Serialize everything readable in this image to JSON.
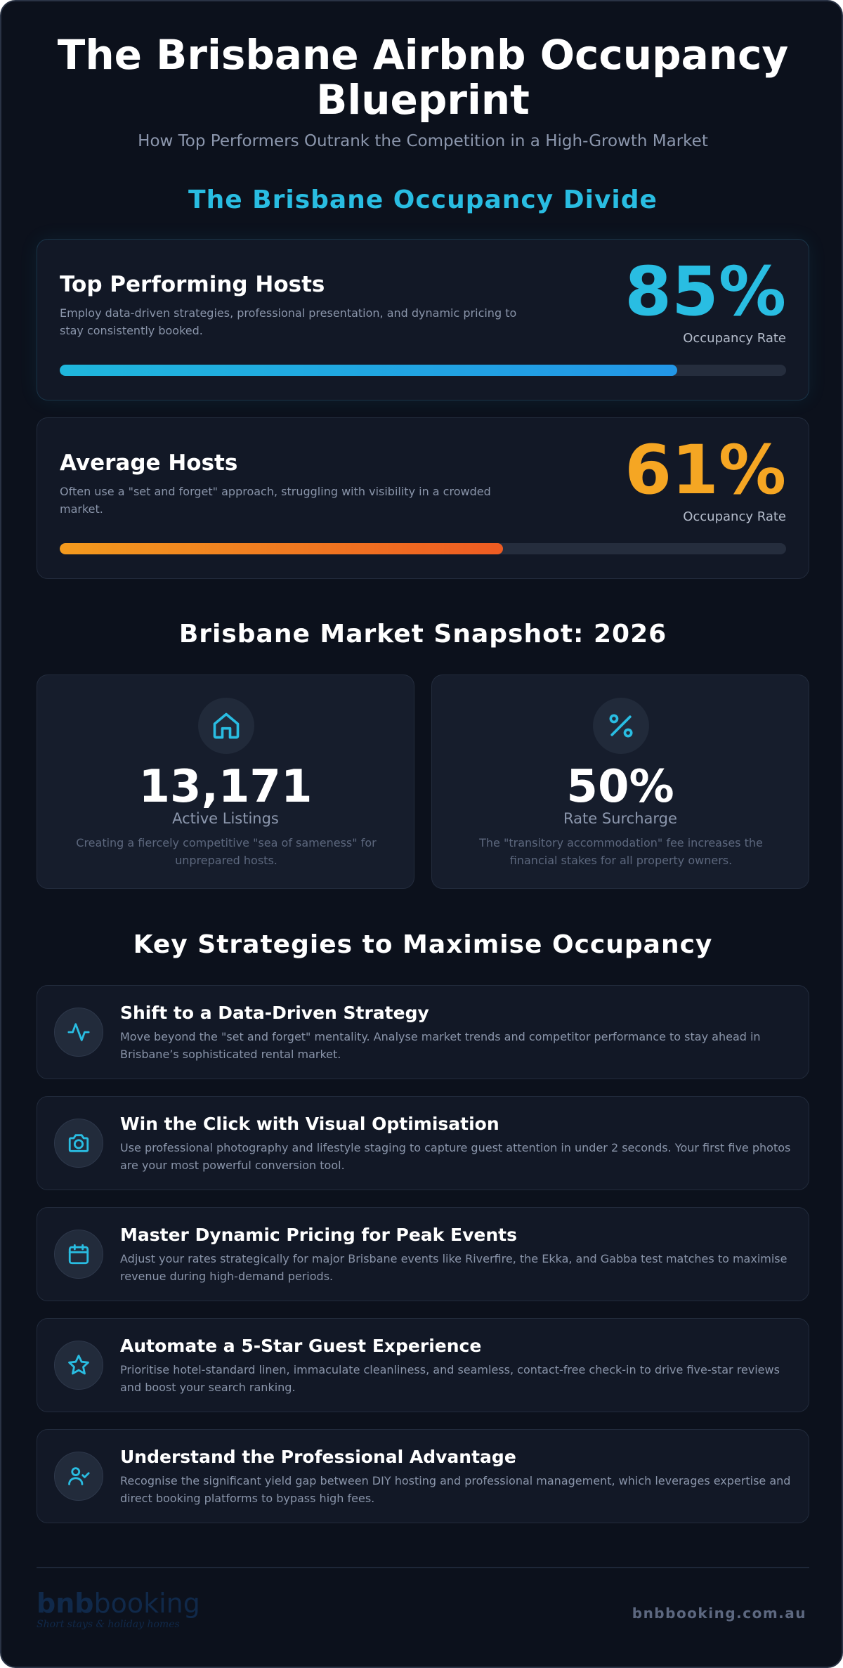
{
  "header": {
    "title_line1": "The Brisbane Airbnb Occupancy",
    "title_line2": "Blueprint",
    "subtitle": "How Top Performers Outrank the Competition in a High-Growth Market"
  },
  "divide": {
    "heading": "The Brisbane Occupancy Divide",
    "cards": [
      {
        "title": "Top Performing Hosts",
        "description": "Employ data-driven strategies, professional presentation, and dynamic pricing to stay consistently booked.",
        "value": "85%",
        "value_label": "Occupancy Rate",
        "progress": 0.85,
        "color": "#29bde2"
      },
      {
        "title": "Average Hosts",
        "description": "Often use a \"set and forget\" approach, struggling with visibility in a crowded market.",
        "value": "61%",
        "value_label": "Occupancy Rate",
        "progress": 0.61,
        "color": "#f5a623"
      }
    ]
  },
  "snapshot": {
    "heading": "Brisbane Market Snapshot: 2026",
    "stats": [
      {
        "icon": "house-icon",
        "value": "13,171",
        "label": "Active Listings",
        "description": "Creating a fiercely competitive \"sea of sameness\" for unprepared hosts."
      },
      {
        "icon": "percent-icon",
        "value": "50%",
        "label": "Rate Surcharge",
        "description": "The \"transitory accommodation\" fee increases the financial stakes for all property owners."
      }
    ]
  },
  "strategies": {
    "heading": "Key Strategies to Maximise Occupancy",
    "items": [
      {
        "icon": "activity-icon",
        "title": "Shift to a Data-Driven Strategy",
        "text": "Move beyond the \"set and forget\" mentality. Analyse market trends and competitor performance to stay ahead in Brisbane’s sophisticated rental market."
      },
      {
        "icon": "camera-icon",
        "title": "Win the Click with Visual Optimisation",
        "text": "Use professional photography and lifestyle staging to capture guest attention in under 2 seconds. Your first five photos are your most powerful conversion tool."
      },
      {
        "icon": "calendar-icon",
        "title": "Master Dynamic Pricing for Peak Events",
        "text": "Adjust your rates strategically for major Brisbane events like Riverfire, the Ekka, and Gabba test matches to maximise revenue during high-demand periods."
      },
      {
        "icon": "star-icon",
        "title": "Automate a 5-Star Guest Experience",
        "text": "Prioritise hotel-standard linen, immaculate cleanliness, and seamless, contact-free check-in to drive five-star reviews and boost your search ranking."
      },
      {
        "icon": "user-check-icon",
        "title": "Understand the Professional Advantage",
        "text": "Recognise the significant yield gap between DIY hosting and professional management, which leverages expertise and direct booking platforms to bypass high fees."
      }
    ]
  },
  "footer": {
    "logo_text_a": "bnb",
    "logo_text_b": "booking",
    "logo_tagline": "Short stays & holiday homes",
    "website": "bnbbooking.com.au"
  },
  "colors": {
    "background": "#0c111c",
    "accent_cyan": "#29bde2",
    "accent_orange": "#f5a623"
  }
}
